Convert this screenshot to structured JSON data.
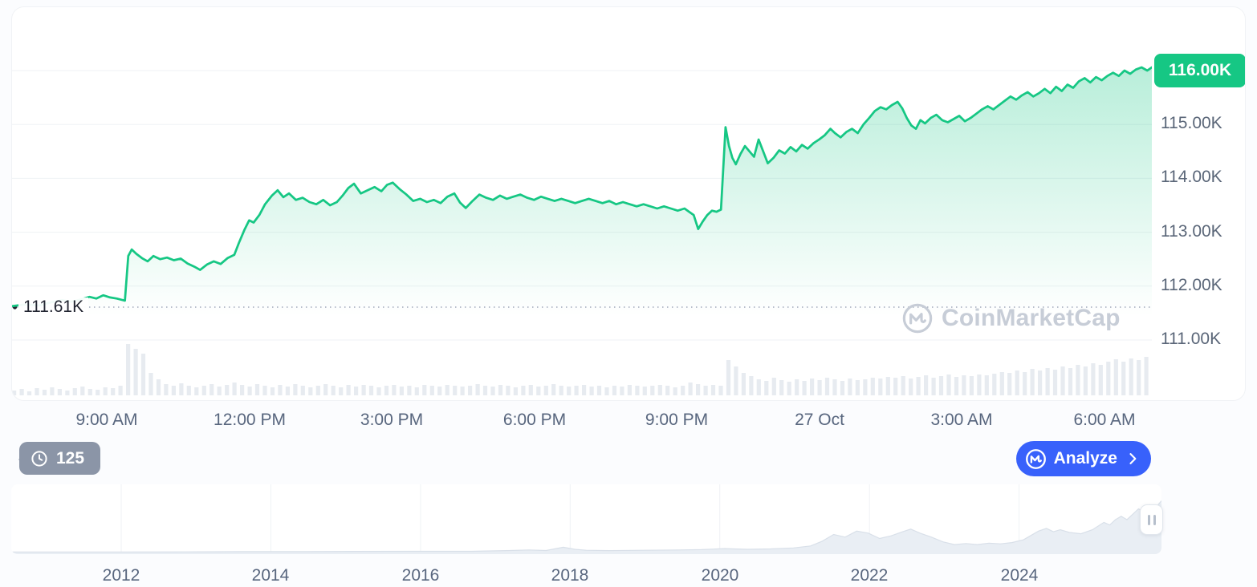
{
  "colors": {
    "green": "#16c784",
    "green_fill_top": "rgba(22,199,132,0.30)",
    "green_fill_bottom": "rgba(22,199,132,0.0)",
    "blue": "#3861fb",
    "badge_bg": "#16c784",
    "pill_bg": "#8b95a7",
    "grid": "#eff2f5",
    "dotted_line": "#a0a9ba",
    "volume_bar": "#e7ebf0",
    "nav_fill": "#e9eef4",
    "nav_stroke": "#d9e0e9",
    "axis_text": "#58667e"
  },
  "price_chart": {
    "current_price_badge": "116.00K",
    "baseline_label": "111.61K",
    "watermark_text": "CoinMarketCap"
  },
  "toolbar": {
    "history_count": "125",
    "analyze_label": "Analyze"
  },
  "chart_data": [
    {
      "type": "area",
      "name": "price-line-24h",
      "ylim": [
        111.0,
        116.0
      ],
      "grid": true,
      "baseline_value": 111.61,
      "current_value": 116.0,
      "y_ticks": [
        {
          "label": "116.00K",
          "value": 116
        },
        {
          "label": "115.00K",
          "value": 115
        },
        {
          "label": "114.00K",
          "value": 114
        },
        {
          "label": "113.00K",
          "value": 113
        },
        {
          "label": "112.00K",
          "value": 112
        },
        {
          "label": "111.00K",
          "value": 111
        }
      ],
      "x_ticks": [
        {
          "label": "9:00 AM",
          "f": 0.084
        },
        {
          "label": "12:00 PM",
          "f": 0.209
        },
        {
          "label": "3:00 PM",
          "f": 0.334
        },
        {
          "label": "6:00 PM",
          "f": 0.459
        },
        {
          "label": "9:00 PM",
          "f": 0.584
        },
        {
          "label": "27 Oct",
          "f": 0.709
        },
        {
          "label": "3:00 AM",
          "f": 0.834
        },
        {
          "label": "6:00 AM",
          "f": 0.959
        }
      ],
      "points": [
        [
          0,
          111.63
        ],
        [
          0.012,
          111.66
        ],
        [
          0.024,
          111.64
        ],
        [
          0.034,
          111.7
        ],
        [
          0.044,
          111.74
        ],
        [
          0.052,
          111.71
        ],
        [
          0.06,
          111.75
        ],
        [
          0.068,
          111.8
        ],
        [
          0.074,
          111.77
        ],
        [
          0.08,
          111.83
        ],
        [
          0.086,
          111.79
        ],
        [
          0.092,
          111.77
        ],
        [
          0.099,
          111.73
        ],
        [
          0.102,
          112.56
        ],
        [
          0.105,
          112.68
        ],
        [
          0.109,
          112.6
        ],
        [
          0.114,
          112.52
        ],
        [
          0.119,
          112.46
        ],
        [
          0.124,
          112.56
        ],
        [
          0.13,
          112.5
        ],
        [
          0.136,
          112.53
        ],
        [
          0.142,
          112.48
        ],
        [
          0.148,
          112.51
        ],
        [
          0.154,
          112.42
        ],
        [
          0.16,
          112.36
        ],
        [
          0.165,
          112.3
        ],
        [
          0.171,
          112.4
        ],
        [
          0.177,
          112.46
        ],
        [
          0.183,
          112.41
        ],
        [
          0.189,
          112.52
        ],
        [
          0.195,
          112.58
        ],
        [
          0.199,
          112.8
        ],
        [
          0.204,
          113.05
        ],
        [
          0.208,
          113.22
        ],
        [
          0.212,
          113.18
        ],
        [
          0.217,
          113.32
        ],
        [
          0.222,
          113.52
        ],
        [
          0.228,
          113.68
        ],
        [
          0.233,
          113.78
        ],
        [
          0.238,
          113.65
        ],
        [
          0.243,
          113.72
        ],
        [
          0.249,
          113.6
        ],
        [
          0.255,
          113.64
        ],
        [
          0.261,
          113.56
        ],
        [
          0.267,
          113.52
        ],
        [
          0.273,
          113.6
        ],
        [
          0.279,
          113.5
        ],
        [
          0.285,
          113.56
        ],
        [
          0.29,
          113.68
        ],
        [
          0.295,
          113.82
        ],
        [
          0.3,
          113.9
        ],
        [
          0.306,
          113.72
        ],
        [
          0.312,
          113.78
        ],
        [
          0.318,
          113.84
        ],
        [
          0.324,
          113.76
        ],
        [
          0.329,
          113.88
        ],
        [
          0.334,
          113.92
        ],
        [
          0.34,
          113.8
        ],
        [
          0.346,
          113.7
        ],
        [
          0.352,
          113.58
        ],
        [
          0.358,
          113.62
        ],
        [
          0.364,
          113.56
        ],
        [
          0.37,
          113.6
        ],
        [
          0.376,
          113.54
        ],
        [
          0.382,
          113.66
        ],
        [
          0.388,
          113.72
        ],
        [
          0.393,
          113.55
        ],
        [
          0.398,
          113.45
        ],
        [
          0.404,
          113.58
        ],
        [
          0.41,
          113.7
        ],
        [
          0.416,
          113.64
        ],
        [
          0.422,
          113.6
        ],
        [
          0.428,
          113.68
        ],
        [
          0.434,
          113.62
        ],
        [
          0.44,
          113.66
        ],
        [
          0.446,
          113.7
        ],
        [
          0.452,
          113.64
        ],
        [
          0.458,
          113.6
        ],
        [
          0.464,
          113.66
        ],
        [
          0.47,
          113.62
        ],
        [
          0.476,
          113.58
        ],
        [
          0.482,
          113.62
        ],
        [
          0.488,
          113.58
        ],
        [
          0.494,
          113.54
        ],
        [
          0.5,
          113.58
        ],
        [
          0.506,
          113.62
        ],
        [
          0.512,
          113.58
        ],
        [
          0.518,
          113.54
        ],
        [
          0.524,
          113.58
        ],
        [
          0.53,
          113.52
        ],
        [
          0.536,
          113.56
        ],
        [
          0.542,
          113.52
        ],
        [
          0.548,
          113.48
        ],
        [
          0.554,
          113.52
        ],
        [
          0.56,
          113.48
        ],
        [
          0.566,
          113.44
        ],
        [
          0.572,
          113.48
        ],
        [
          0.578,
          113.44
        ],
        [
          0.584,
          113.4
        ],
        [
          0.59,
          113.44
        ],
        [
          0.594,
          113.38
        ],
        [
          0.598,
          113.32
        ],
        [
          0.602,
          113.06
        ],
        [
          0.606,
          113.2
        ],
        [
          0.61,
          113.32
        ],
        [
          0.614,
          113.4
        ],
        [
          0.618,
          113.38
        ],
        [
          0.622,
          113.42
        ],
        [
          0.626,
          114.95
        ],
        [
          0.629,
          114.6
        ],
        [
          0.632,
          114.38
        ],
        [
          0.635,
          114.26
        ],
        [
          0.639,
          114.45
        ],
        [
          0.643,
          114.6
        ],
        [
          0.647,
          114.5
        ],
        [
          0.651,
          114.4
        ],
        [
          0.655,
          114.72
        ],
        [
          0.659,
          114.5
        ],
        [
          0.663,
          114.28
        ],
        [
          0.668,
          114.38
        ],
        [
          0.673,
          114.52
        ],
        [
          0.678,
          114.46
        ],
        [
          0.683,
          114.58
        ],
        [
          0.688,
          114.5
        ],
        [
          0.693,
          114.62
        ],
        [
          0.698,
          114.55
        ],
        [
          0.703,
          114.65
        ],
        [
          0.708,
          114.72
        ],
        [
          0.713,
          114.8
        ],
        [
          0.718,
          114.92
        ],
        [
          0.722,
          114.84
        ],
        [
          0.727,
          114.76
        ],
        [
          0.732,
          114.86
        ],
        [
          0.737,
          114.92
        ],
        [
          0.742,
          114.84
        ],
        [
          0.747,
          115
        ],
        [
          0.752,
          115.12
        ],
        [
          0.757,
          115.25
        ],
        [
          0.762,
          115.32
        ],
        [
          0.767,
          115.28
        ],
        [
          0.772,
          115.36
        ],
        [
          0.777,
          115.42
        ],
        [
          0.781,
          115.3
        ],
        [
          0.785,
          115.12
        ],
        [
          0.789,
          114.98
        ],
        [
          0.793,
          114.92
        ],
        [
          0.797,
          115.08
        ],
        [
          0.801,
          115.02
        ],
        [
          0.806,
          115.12
        ],
        [
          0.811,
          115.18
        ],
        [
          0.816,
          115.08
        ],
        [
          0.821,
          115.04
        ],
        [
          0.826,
          115.1
        ],
        [
          0.831,
          115.16
        ],
        [
          0.836,
          115.06
        ],
        [
          0.841,
          115.12
        ],
        [
          0.846,
          115.2
        ],
        [
          0.851,
          115.28
        ],
        [
          0.856,
          115.34
        ],
        [
          0.861,
          115.28
        ],
        [
          0.866,
          115.36
        ],
        [
          0.871,
          115.44
        ],
        [
          0.876,
          115.52
        ],
        [
          0.881,
          115.46
        ],
        [
          0.886,
          115.54
        ],
        [
          0.891,
          115.6
        ],
        [
          0.896,
          115.52
        ],
        [
          0.901,
          115.58
        ],
        [
          0.906,
          115.66
        ],
        [
          0.911,
          115.58
        ],
        [
          0.916,
          115.7
        ],
        [
          0.921,
          115.62
        ],
        [
          0.926,
          115.74
        ],
        [
          0.931,
          115.68
        ],
        [
          0.936,
          115.8
        ],
        [
          0.941,
          115.86
        ],
        [
          0.946,
          115.78
        ],
        [
          0.951,
          115.88
        ],
        [
          0.956,
          115.82
        ],
        [
          0.961,
          115.9
        ],
        [
          0.966,
          115.96
        ],
        [
          0.971,
          115.9
        ],
        [
          0.976,
          116
        ],
        [
          0.981,
          115.94
        ],
        [
          0.986,
          116.02
        ],
        [
          0.991,
          116.06
        ],
        [
          0.996,
          116
        ],
        [
          1,
          116.06
        ]
      ],
      "volume": [
        6,
        8,
        5,
        9,
        7,
        10,
        8,
        6,
        9,
        11,
        8,
        7,
        10,
        9,
        12,
        64,
        58,
        52,
        28,
        20,
        14,
        12,
        15,
        12,
        10,
        12,
        14,
        11,
        13,
        16,
        13,
        11,
        14,
        12,
        10,
        13,
        11,
        14,
        12,
        10,
        12,
        14,
        12,
        10,
        13,
        11,
        13,
        12,
        10,
        12,
        13,
        11,
        12,
        10,
        13,
        12,
        11,
        13,
        12,
        11,
        12,
        14,
        12,
        11,
        13,
        12,
        10,
        12,
        13,
        11,
        12,
        14,
        12,
        11,
        12,
        13,
        11,
        12,
        10,
        12,
        11,
        13,
        12,
        11,
        12,
        13,
        12,
        10,
        12,
        16,
        14,
        12,
        13,
        12,
        44,
        36,
        28,
        24,
        20,
        18,
        22,
        19,
        17,
        20,
        18,
        21,
        19,
        22,
        20,
        18,
        21,
        19,
        20,
        22,
        21,
        23,
        22,
        24,
        21,
        23,
        25,
        22,
        24,
        26,
        23,
        25,
        24,
        26,
        25,
        27,
        29,
        28,
        31,
        29,
        33,
        31,
        34,
        32,
        36,
        34,
        38,
        36,
        40,
        38,
        42,
        45,
        42,
        46,
        44,
        48
      ]
    },
    {
      "type": "area",
      "name": "history-navigator",
      "x_ticks": [
        {
          "label": "2012",
          "f": 0.0956
        },
        {
          "label": "2014",
          "f": 0.2257
        },
        {
          "label": "2016",
          "f": 0.3558
        },
        {
          "label": "2018",
          "f": 0.4859
        },
        {
          "label": "2020",
          "f": 0.616
        },
        {
          "label": "2022",
          "f": 0.7461
        },
        {
          "label": "2024",
          "f": 0.8762
        }
      ],
      "points": [
        [
          0,
          0.02
        ],
        [
          0.05,
          0.02
        ],
        [
          0.1,
          0.02
        ],
        [
          0.15,
          0.022
        ],
        [
          0.2,
          0.025
        ],
        [
          0.25,
          0.025
        ],
        [
          0.3,
          0.028
        ],
        [
          0.35,
          0.03
        ],
        [
          0.4,
          0.03
        ],
        [
          0.43,
          0.04
        ],
        [
          0.45,
          0.05
        ],
        [
          0.465,
          0.042
        ],
        [
          0.48,
          0.09
        ],
        [
          0.49,
          0.06
        ],
        [
          0.5,
          0.045
        ],
        [
          0.52,
          0.04
        ],
        [
          0.55,
          0.045
        ],
        [
          0.58,
          0.05
        ],
        [
          0.6,
          0.055
        ],
        [
          0.62,
          0.07
        ],
        [
          0.64,
          0.06
        ],
        [
          0.66,
          0.065
        ],
        [
          0.68,
          0.08
        ],
        [
          0.695,
          0.11
        ],
        [
          0.705,
          0.18
        ],
        [
          0.715,
          0.28
        ],
        [
          0.725,
          0.24
        ],
        [
          0.735,
          0.33
        ],
        [
          0.745,
          0.3
        ],
        [
          0.755,
          0.22
        ],
        [
          0.765,
          0.26
        ],
        [
          0.775,
          0.32
        ],
        [
          0.782,
          0.36
        ],
        [
          0.79,
          0.3
        ],
        [
          0.8,
          0.24
        ],
        [
          0.81,
          0.17
        ],
        [
          0.82,
          0.13
        ],
        [
          0.83,
          0.145
        ],
        [
          0.84,
          0.13
        ],
        [
          0.85,
          0.15
        ],
        [
          0.86,
          0.14
        ],
        [
          0.87,
          0.16
        ],
        [
          0.88,
          0.2
        ],
        [
          0.887,
          0.27
        ],
        [
          0.893,
          0.33
        ],
        [
          0.9,
          0.37
        ],
        [
          0.906,
          0.32
        ],
        [
          0.912,
          0.35
        ],
        [
          0.92,
          0.31
        ],
        [
          0.93,
          0.29
        ],
        [
          0.94,
          0.35
        ],
        [
          0.95,
          0.46
        ],
        [
          0.955,
          0.42
        ],
        [
          0.96,
          0.5
        ],
        [
          0.965,
          0.55
        ],
        [
          0.97,
          0.5
        ],
        [
          0.975,
          0.58
        ],
        [
          0.98,
          0.66
        ],
        [
          0.985,
          0.62
        ],
        [
          0.99,
          0.72
        ],
        [
          0.995,
          0.68
        ],
        [
          1,
          0.78
        ]
      ]
    }
  ]
}
